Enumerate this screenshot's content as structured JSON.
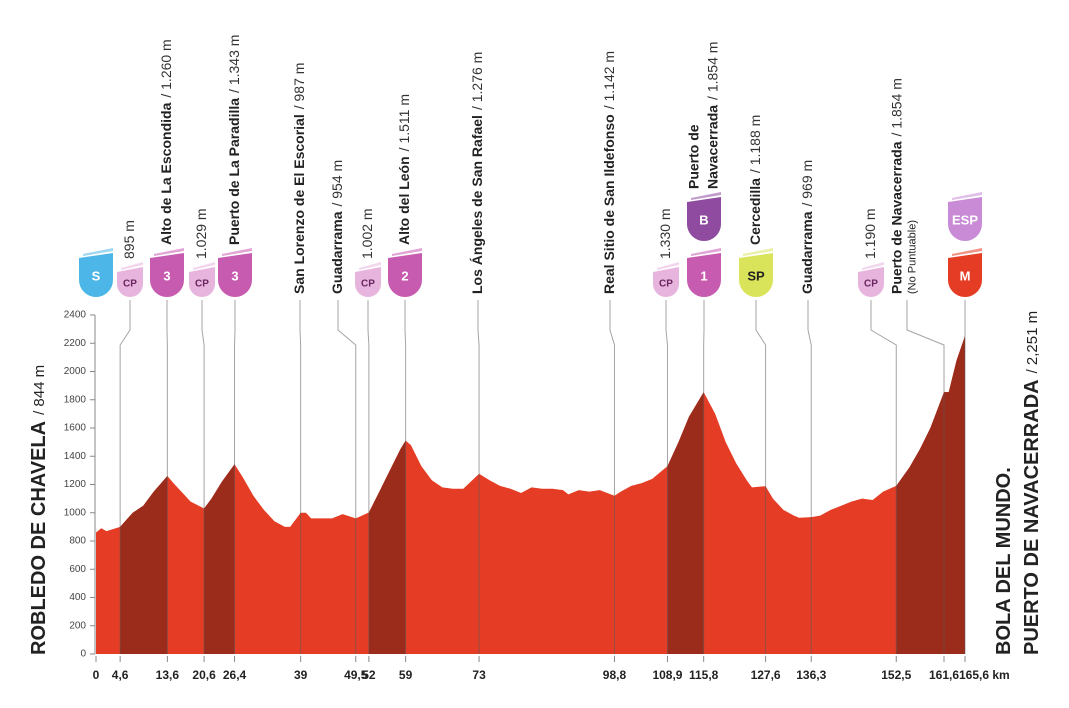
{
  "chart_data": {
    "type": "area",
    "color": "#e53d25",
    "climb_color": "#9b2b1b",
    "xlim": [
      0,
      165.6
    ],
    "ylim": [
      0,
      2400
    ],
    "xticks": [
      0,
      {
        "value": 4.6,
        "label": "4,6"
      },
      {
        "value": 13.6,
        "label": "13,6"
      },
      {
        "value": 20.6,
        "label": "20,6"
      },
      {
        "value": 26.4,
        "label": "26,4"
      },
      39,
      {
        "value": 49.5,
        "label": "49,5"
      },
      52,
      59,
      73,
      {
        "value": 98.8,
        "label": "98,8"
      },
      {
        "value": 108.9,
        "label": "108,9"
      },
      {
        "value": 115.8,
        "label": "115,8"
      },
      {
        "value": 127.6,
        "label": "127,6"
      },
      {
        "value": 136.3,
        "label": "136,3"
      },
      {
        "value": 152.5,
        "label": "152,5"
      },
      {
        "value": 161.6,
        "label": "161,6"
      },
      {
        "value": 165.6,
        "label": "165,6 km"
      }
    ],
    "yticks": [
      0,
      200,
      400,
      600,
      800,
      1000,
      1200,
      1400,
      1600,
      1800,
      2000,
      2200,
      2400
    ],
    "profile": {
      "x": [
        0,
        1,
        2,
        4.6,
        7,
        9,
        11,
        13.6,
        15,
        17,
        18,
        20.6,
        22,
        24,
        26.4,
        28,
        30,
        32,
        34,
        36,
        37,
        39,
        40,
        41,
        43,
        45,
        47,
        49.5,
        52,
        54,
        56,
        58,
        59,
        60,
        62,
        64,
        66,
        68,
        70,
        73,
        75,
        77,
        79,
        81,
        83,
        85,
        87,
        89,
        90,
        92,
        94,
        96,
        98.8,
        100,
        102,
        104,
        106,
        108.9,
        111,
        113,
        115.8,
        118,
        120,
        122,
        124,
        125,
        127.6,
        129,
        131,
        133,
        134,
        136.3,
        138,
        140,
        142,
        144,
        146,
        148,
        150,
        152.5,
        155,
        157,
        159,
        161.6,
        162.5,
        164,
        165.6
      ],
      "values": [
        860,
        890,
        870,
        900,
        1000,
        1050,
        1150,
        1260,
        1200,
        1120,
        1080,
        1030,
        1100,
        1220,
        1343,
        1250,
        1120,
        1020,
        940,
        900,
        900,
        1000,
        1000,
        960,
        960,
        960,
        990,
        960,
        1002,
        1150,
        1300,
        1450,
        1511,
        1480,
        1330,
        1230,
        1180,
        1170,
        1170,
        1276,
        1230,
        1190,
        1170,
        1140,
        1180,
        1170,
        1170,
        1160,
        1130,
        1160,
        1150,
        1160,
        1120,
        1150,
        1190,
        1210,
        1240,
        1330,
        1500,
        1680,
        1854,
        1700,
        1500,
        1350,
        1230,
        1180,
        1188,
        1100,
        1020,
        980,
        965,
        969,
        980,
        1020,
        1050,
        1080,
        1100,
        1090,
        1150,
        1190,
        1320,
        1450,
        1600,
        1854,
        1854,
        2080,
        2251
      ]
    },
    "climbs": [
      {
        "start": 4.6,
        "end": 13.6
      },
      {
        "start": 20.6,
        "end": 26.4
      },
      {
        "start": 52,
        "end": 59
      },
      {
        "start": 108.9,
        "end": 115.8
      },
      {
        "start": 152.5,
        "end": 165.6
      }
    ],
    "start": {
      "name": "ROBLEDO DE CHAVELA",
      "altitude": "/ 844 m"
    },
    "finish": {
      "name_lines": [
        "BOLA DEL MUNDO.",
        "PUERTO DE NAVACERRADA"
      ],
      "altitude": "/ 2,251 m"
    },
    "points": [
      {
        "km": 0,
        "markers": [
          {
            "text": "S",
            "color": "#4cb6e8",
            "text_color": "#ffffff",
            "size": "large"
          }
        ]
      },
      {
        "km": 4.6,
        "altitude": "895 m",
        "markers": [
          {
            "text": "CP",
            "color": "#e7b4de",
            "text_color": "#6b2560",
            "size": "small"
          }
        ]
      },
      {
        "km": 13.6,
        "name_lines": [
          "Alto de La Escondida"
        ],
        "altitude": "/ 1.260 m",
        "markers": [
          {
            "text": "3",
            "color": "#c75bb0",
            "text_color": "#ffffff",
            "size": "large"
          }
        ]
      },
      {
        "km": 20.6,
        "altitude": "1.029 m",
        "markers": [
          {
            "text": "CP",
            "color": "#e7b4de",
            "text_color": "#6b2560",
            "size": "small"
          }
        ]
      },
      {
        "km": 26.4,
        "name_lines": [
          "Puerto de La Paradilla"
        ],
        "altitude": "/ 1.343 m",
        "markers": [
          {
            "text": "3",
            "color": "#c75bb0",
            "text_color": "#ffffff",
            "size": "large"
          }
        ]
      },
      {
        "km": 39,
        "name_lines": [
          "San Lorenzo de El Escorial"
        ],
        "altitude": "/ 987 m",
        "markers": []
      },
      {
        "km": 49.5,
        "name_lines": [
          "Guadarrama"
        ],
        "altitude": "/ 954 m",
        "markers": []
      },
      {
        "km": 52,
        "altitude": "1.002 m",
        "markers": [
          {
            "text": "CP",
            "color": "#e7b4de",
            "text_color": "#6b2560",
            "size": "small"
          }
        ]
      },
      {
        "km": 59,
        "name_lines": [
          "Alto del León"
        ],
        "altitude": "/ 1.511 m",
        "markers": [
          {
            "text": "2",
            "color": "#c75bb0",
            "text_color": "#ffffff",
            "size": "large"
          }
        ]
      },
      {
        "km": 73,
        "name_lines": [
          "Los Ángeles de San Rafael"
        ],
        "altitude": "/ 1.276 m",
        "markers": []
      },
      {
        "km": 98.8,
        "name_lines": [
          "Real Sitio de San Ildefonso"
        ],
        "altitude": "/ 1.142 m",
        "markers": []
      },
      {
        "km": 108.9,
        "altitude": "1.330 m",
        "markers": [
          {
            "text": "CP",
            "color": "#e7b4de",
            "text_color": "#6b2560",
            "size": "small"
          }
        ]
      },
      {
        "km": 115.8,
        "name_lines": [
          "Puerto de",
          "Navacerrada"
        ],
        "altitude": "/ 1.854 m",
        "markers": [
          {
            "text": "B",
            "color": "#8e4b9f",
            "text_color": "#ffffff",
            "size": "large"
          },
          {
            "text": "1",
            "color": "#c75bb0",
            "text_color": "#ffffff",
            "size": "large"
          }
        ]
      },
      {
        "km": 127.6,
        "name_lines": [
          "Cercedilla"
        ],
        "altitude": "/ 1.188 m",
        "markers": [
          {
            "text": "SP",
            "color": "#d9e45a",
            "text_color": "#222222",
            "size": "large"
          }
        ]
      },
      {
        "km": 136.3,
        "name_lines": [
          "Guadarrama"
        ],
        "altitude": "/ 969 m",
        "markers": []
      },
      {
        "km": 152.5,
        "altitude": "1.190 m",
        "markers": [
          {
            "text": "CP",
            "color": "#e7b4de",
            "text_color": "#6b2560",
            "size": "small"
          }
        ]
      },
      {
        "km": 161.6,
        "name_lines": [
          "Puerto de Navacerrada"
        ],
        "altitude": "/ 1.854 m",
        "note": "(No Puntuable)",
        "markers": []
      },
      {
        "km": 165.6,
        "markers": [
          {
            "text": "ESP",
            "color": "#c98bd6",
            "text_color": "#ffffff",
            "size": "large"
          },
          {
            "text": "M",
            "color": "#e53d25",
            "text_color": "#ffffff",
            "size": "large"
          }
        ]
      }
    ]
  }
}
